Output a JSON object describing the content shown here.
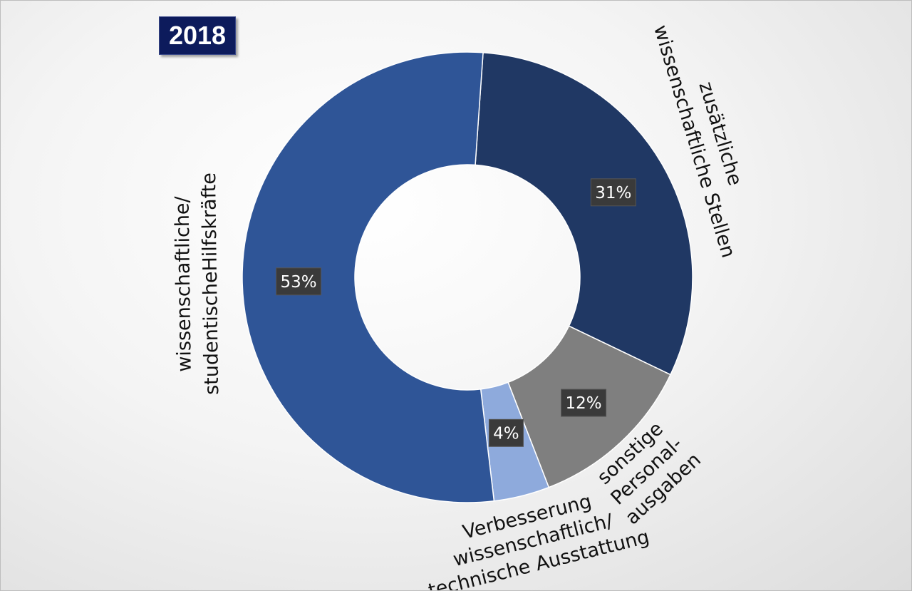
{
  "chart_data": {
    "type": "pie",
    "variant": "donut",
    "title": "2018",
    "legend": "none",
    "slices": [
      {
        "label": "zusätzliche wissenschaftliche Stellen",
        "lines": [
          "zusätzliche",
          "wissenschaftliche Stellen"
        ],
        "value": 31,
        "value_label": "31%",
        "color": "#203864"
      },
      {
        "label": "sonstige Personal-ausgaben",
        "lines": [
          "sonstige",
          "Personal-",
          "ausgaben"
        ],
        "value": 12,
        "value_label": "12%",
        "color": "#7f7f7f"
      },
      {
        "label": "Verbesserung wissenschaftlich/ technische Ausstattung",
        "lines": [
          "Verbesserung",
          "wissenschaftlich/",
          "technische Ausstattung"
        ],
        "value": 4,
        "value_label": "4%",
        "color": "#8eaadc"
      },
      {
        "label": "wissenschaftliche/ studentischeHilfskräfte",
        "lines": [
          "wissenschaftliche/",
          "studentischeHilfskräfte"
        ],
        "value": 53,
        "value_label": "53%",
        "color": "#2f5597"
      }
    ]
  }
}
